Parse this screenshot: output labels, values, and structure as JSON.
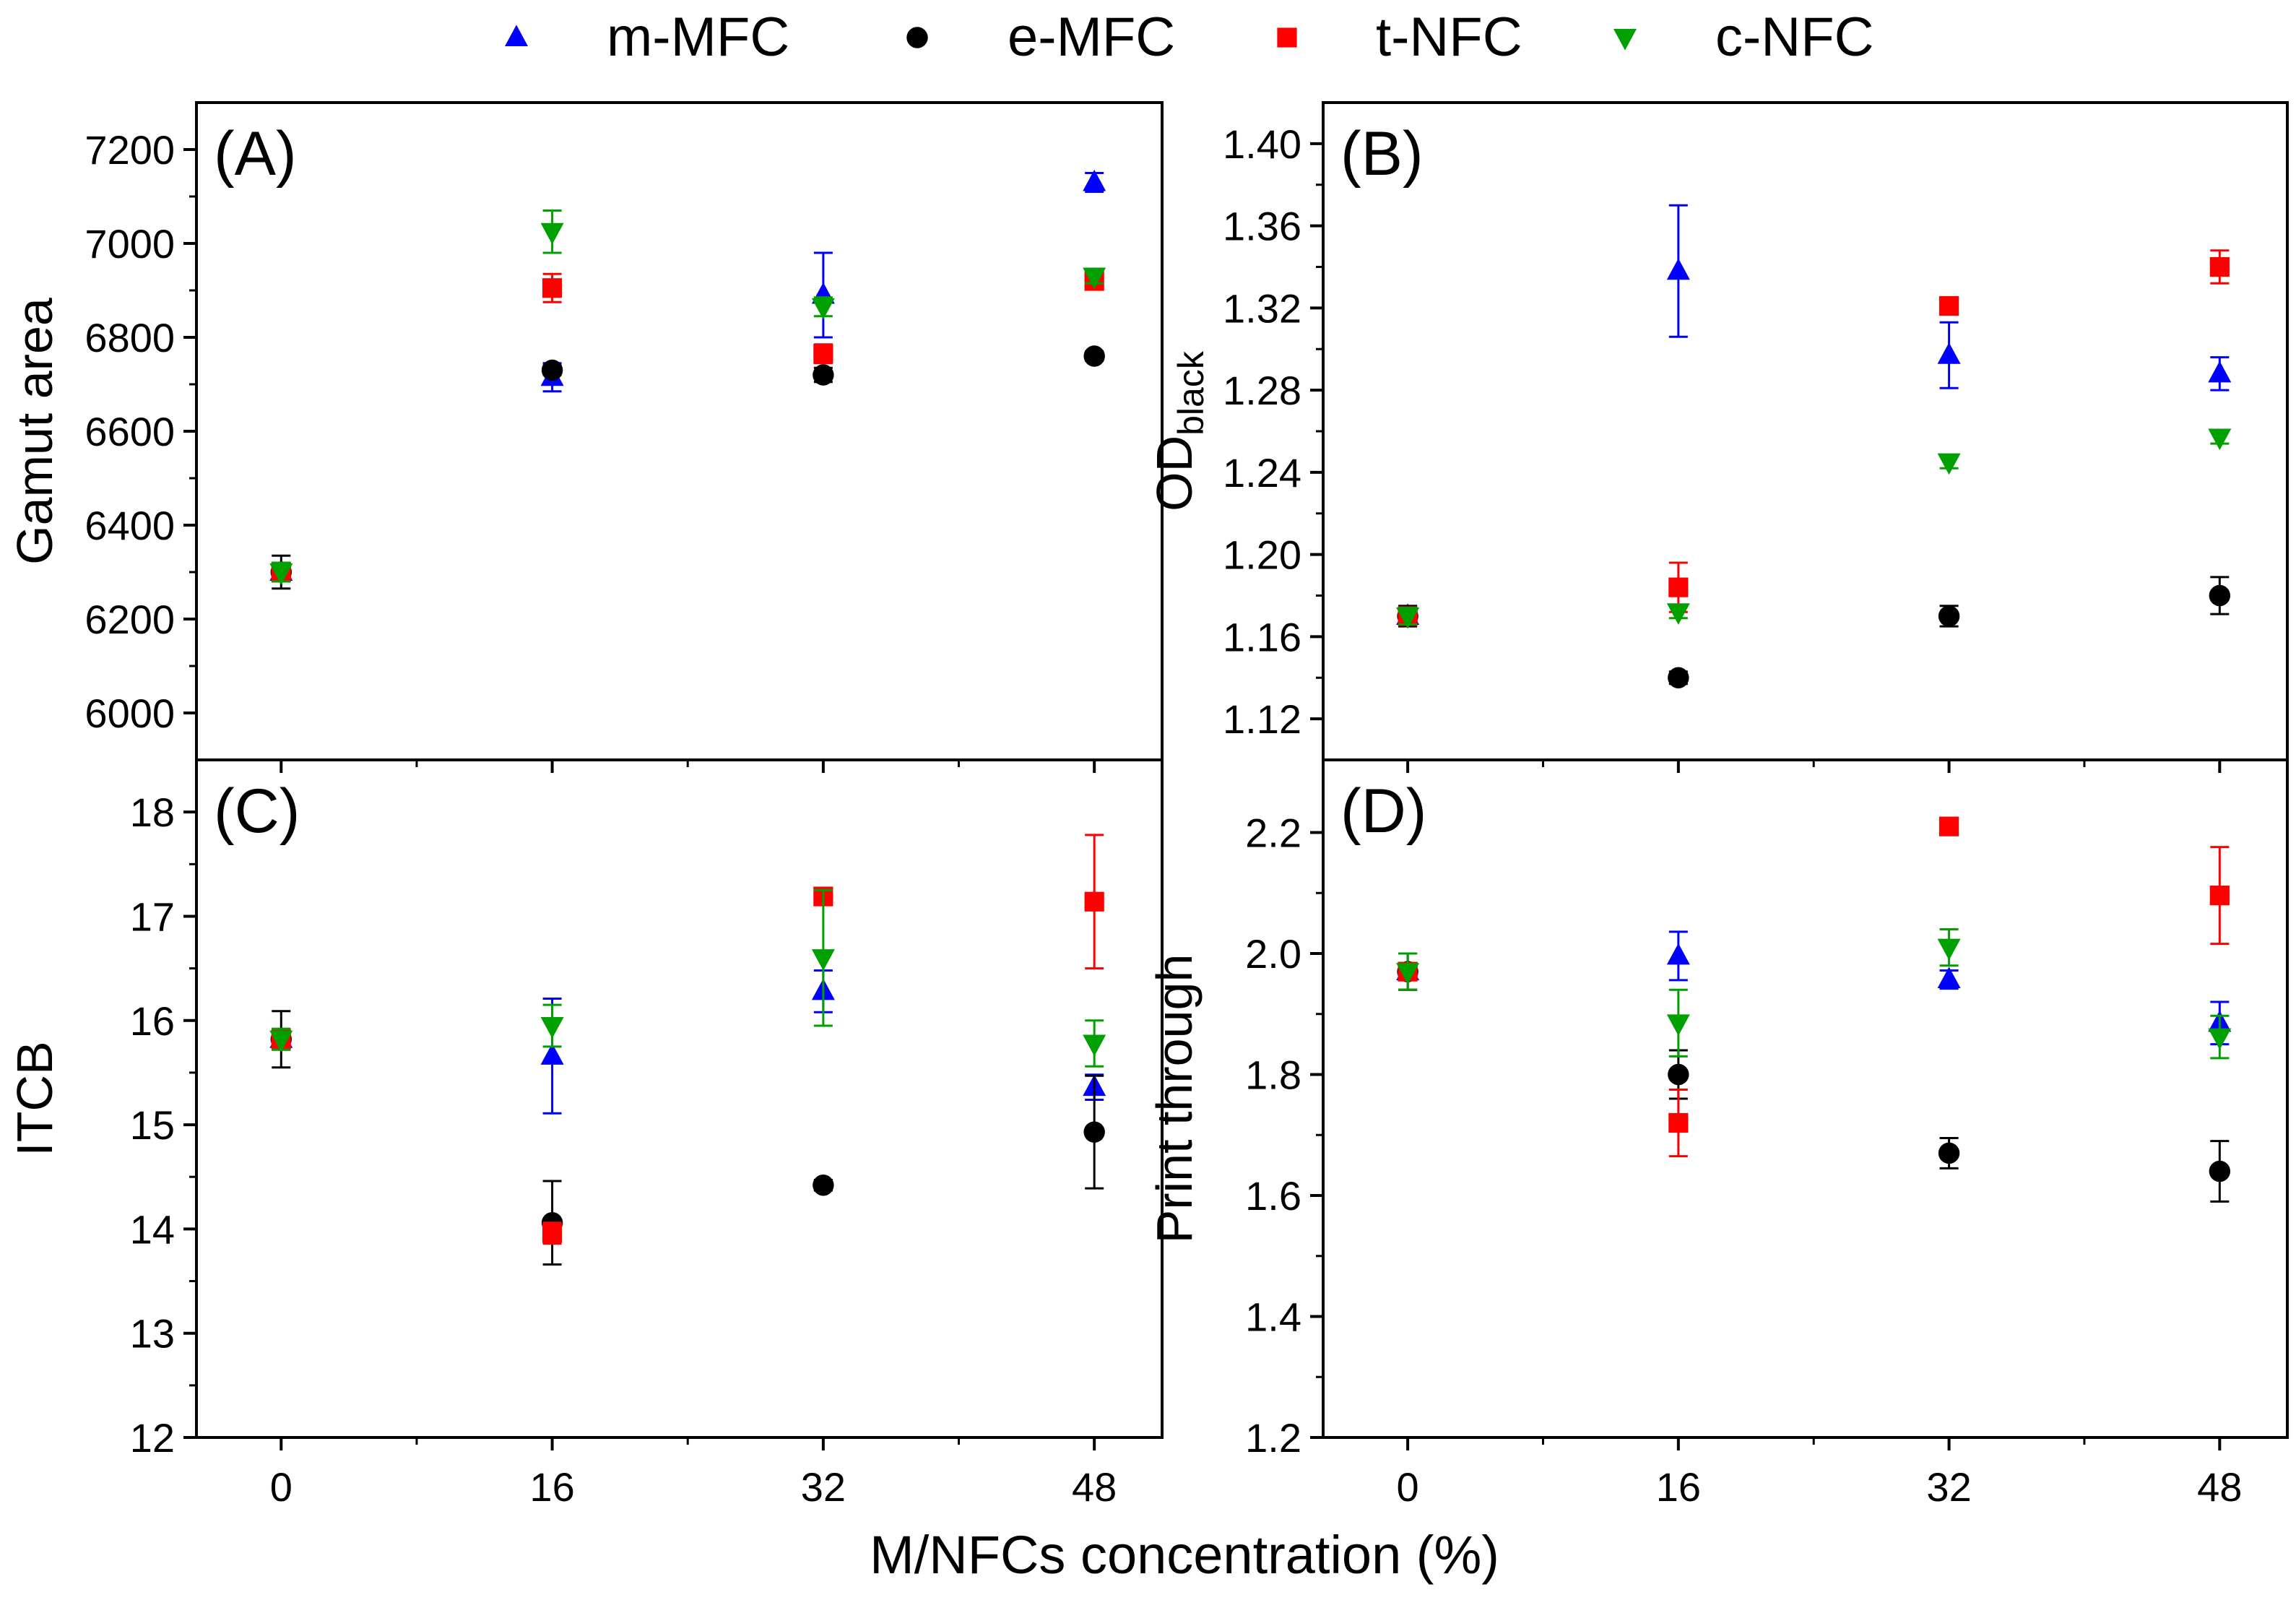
{
  "legend": [
    {
      "name": "m-MFC",
      "color": "#0000ff",
      "marker": "triangle-up"
    },
    {
      "name": "e-MFC",
      "color": "#000000",
      "marker": "circle"
    },
    {
      "name": "t-NFC",
      "color": "#ff0000",
      "marker": "square"
    },
    {
      "name": "c-NFC",
      "color": "#00a000",
      "marker": "triangle-down"
    }
  ],
  "shared_xlabel": "M/NFCs concentration (%)",
  "chart_data": [
    {
      "panel": "(A)",
      "type": "scatter",
      "ylabel": "Gamut area",
      "ylabel_sub": "",
      "xlim": [
        -5,
        52
      ],
      "ylim": [
        5900,
        7300
      ],
      "yticks": [
        6000,
        6200,
        6400,
        6600,
        6800,
        7000,
        7200
      ],
      "ytick_labels": [
        "6000",
        "6200",
        "6400",
        "6600",
        "6800",
        "7000",
        "7200"
      ],
      "xticks": [
        0,
        16,
        32,
        48
      ],
      "xtick_labels": [
        "0",
        "16",
        "32",
        "48"
      ],
      "series": [
        {
          "name": "m-MFC",
          "x": [
            0,
            16,
            32,
            48
          ],
          "y": [
            6300,
            6715,
            6890,
            7130
          ],
          "err": [
            20,
            30,
            90,
            20
          ]
        },
        {
          "name": "e-MFC",
          "x": [
            0,
            16,
            32,
            48
          ],
          "y": [
            6300,
            6730,
            6720,
            6760
          ],
          "err": [
            35,
            10,
            15,
            10
          ]
        },
        {
          "name": "t-NFC",
          "x": [
            0,
            16,
            32,
            48
          ],
          "y": [
            6300,
            6905,
            6765,
            6920
          ],
          "err": [
            20,
            30,
            20,
            15
          ]
        },
        {
          "name": "c-NFC",
          "x": [
            0,
            16,
            32,
            48
          ],
          "y": [
            6300,
            7025,
            6865,
            6930
          ],
          "err": [
            20,
            45,
            20,
            15
          ]
        }
      ]
    },
    {
      "panel": "(B)",
      "type": "scatter",
      "ylabel": "OD",
      "ylabel_sub": "black",
      "xlim": [
        -5,
        52
      ],
      "ylim": [
        1.1,
        1.42
      ],
      "yticks": [
        1.12,
        1.16,
        1.2,
        1.24,
        1.28,
        1.32,
        1.36,
        1.4
      ],
      "ytick_labels": [
        "1.12",
        "1.16",
        "1.20",
        "1.24",
        "1.28",
        "1.32",
        "1.36",
        "1.40"
      ],
      "xticks": [
        0,
        16,
        32,
        48
      ],
      "xtick_labels": [
        "0",
        "16",
        "32",
        "48"
      ],
      "series": [
        {
          "name": "m-MFC",
          "x": [
            0,
            16,
            32,
            48
          ],
          "y": [
            1.17,
            1.338,
            1.297,
            1.288
          ],
          "err": [
            0.004,
            0.032,
            0.016,
            0.008
          ]
        },
        {
          "name": "e-MFC",
          "x": [
            0,
            16,
            32,
            48
          ],
          "y": [
            1.17,
            1.14,
            1.17,
            1.18
          ],
          "err": [
            0.005,
            0.003,
            0.005,
            0.009
          ]
        },
        {
          "name": "t-NFC",
          "x": [
            0,
            16,
            32,
            48
          ],
          "y": [
            1.17,
            1.184,
            1.321,
            1.34
          ],
          "err": [
            0.004,
            0.012,
            0.003,
            0.008
          ]
        },
        {
          "name": "c-NFC",
          "x": [
            0,
            16,
            32,
            48
          ],
          "y": [
            1.17,
            1.172,
            1.245,
            1.257
          ],
          "err": [
            0.004,
            0.003,
            0.003,
            0.003
          ]
        }
      ]
    },
    {
      "panel": "(C)",
      "type": "scatter",
      "ylabel": "ITCB",
      "ylabel_sub": "",
      "xlim": [
        -5,
        52
      ],
      "ylim": [
        12,
        18.5
      ],
      "yticks": [
        12,
        13,
        14,
        15,
        16,
        17,
        18
      ],
      "ytick_labels": [
        "12",
        "13",
        "14",
        "15",
        "16",
        "17",
        "18"
      ],
      "xticks": [
        0,
        16,
        32,
        48
      ],
      "xtick_labels": [
        "0",
        "16",
        "32",
        "48"
      ],
      "series": [
        {
          "name": "m-MFC",
          "x": [
            0,
            16,
            32,
            48
          ],
          "y": [
            15.82,
            15.66,
            16.28,
            15.36
          ],
          "err": [
            0.1,
            0.55,
            0.2,
            0.12
          ]
        },
        {
          "name": "e-MFC",
          "x": [
            0,
            16,
            32,
            48
          ],
          "y": [
            15.82,
            14.06,
            14.42,
            14.93
          ],
          "err": [
            0.27,
            0.4,
            0.05,
            0.54
          ]
        },
        {
          "name": "t-NFC",
          "x": [
            0,
            16,
            32,
            48
          ],
          "y": [
            15.82,
            13.96,
            17.19,
            17.14
          ],
          "err": [
            0.1,
            0.1,
            0.05,
            0.64
          ]
        },
        {
          "name": "c-NFC",
          "x": [
            0,
            16,
            32,
            48
          ],
          "y": [
            15.82,
            15.95,
            16.6,
            15.78
          ],
          "err": [
            0.1,
            0.2,
            0.65,
            0.22
          ]
        }
      ]
    },
    {
      "panel": "(D)",
      "type": "scatter",
      "ylabel": "Print through",
      "ylabel_sub": "",
      "xlim": [
        -5,
        52
      ],
      "ylim": [
        1.2,
        2.32
      ],
      "yticks": [
        1.2,
        1.4,
        1.6,
        1.8,
        2.0,
        2.2
      ],
      "ytick_labels": [
        "1.2",
        "1.4",
        "1.6",
        "1.8",
        "2.0",
        "2.2"
      ],
      "xticks": [
        0,
        16,
        32,
        48
      ],
      "xtick_labels": [
        "0",
        "16",
        "32",
        "48"
      ],
      "series": [
        {
          "name": "m-MFC",
          "x": [
            0,
            16,
            32,
            48
          ],
          "y": [
            1.97,
            1.996,
            1.957,
            1.885
          ],
          "err": [
            0.03,
            0.04,
            0.015,
            0.035
          ]
        },
        {
          "name": "e-MFC",
          "x": [
            0,
            16,
            32,
            48
          ],
          "y": [
            1.97,
            1.8,
            1.67,
            1.64
          ],
          "err": [
            0.03,
            0.04,
            0.025,
            0.05
          ]
        },
        {
          "name": "t-NFC",
          "x": [
            0,
            16,
            32,
            48
          ],
          "y": [
            1.97,
            1.72,
            2.21,
            2.096
          ],
          "err": [
            0.03,
            0.055,
            0.005,
            0.08
          ]
        },
        {
          "name": "c-NFC",
          "x": [
            0,
            16,
            32,
            48
          ],
          "y": [
            1.97,
            1.885,
            2.01,
            1.862
          ],
          "err": [
            0.03,
            0.055,
            0.03,
            0.035
          ]
        }
      ]
    }
  ]
}
